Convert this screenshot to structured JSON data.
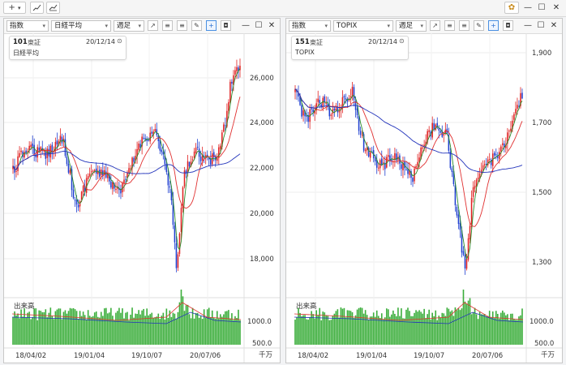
{
  "toolbar": {
    "add_label": "+",
    "add_arrow": "▾",
    "settings_glyph": "✿",
    "minimize": "—",
    "maximize": "☐",
    "close": "✕"
  },
  "panels": [
    {
      "type_select": "指数",
      "index_select": "日経平均",
      "period_select": "週足",
      "info": {
        "code": "101",
        "exchange": "東証",
        "date": "20/12/14",
        "name": "日経平均"
      },
      "y_ticks": [
        "26,000",
        "24,000",
        "22,000",
        "20,000",
        "18,000"
      ],
      "volume_title": "出来高",
      "volume_ticks": [
        "1000.0",
        "500.0"
      ],
      "volume_unit": "千万",
      "x_ticks": [
        "18/04/02",
        "19/01/04",
        "19/10/07",
        "20/07/06"
      ]
    },
    {
      "type_select": "指数",
      "index_select": "TOPIX",
      "period_select": "週足",
      "info": {
        "code": "151",
        "exchange": "東証",
        "date": "20/12/14",
        "name": "TOPIX"
      },
      "y_ticks": [
        "1,900",
        "1,700",
        "1,500",
        "1,300"
      ],
      "volume_title": "出来高",
      "volume_ticks": [
        "1000.0",
        "500.0"
      ],
      "volume_unit": "千万",
      "x_ticks": [
        "18/04/02",
        "19/01/04",
        "19/10/07",
        "20/07/06"
      ]
    }
  ],
  "colors": {
    "up": "#e02020",
    "down": "#1f3fd0",
    "ma_short": "#2a8a2a",
    "ma_mid": "#e03030",
    "ma_long": "#2233bb",
    "volume": "#3cae3c"
  }
}
